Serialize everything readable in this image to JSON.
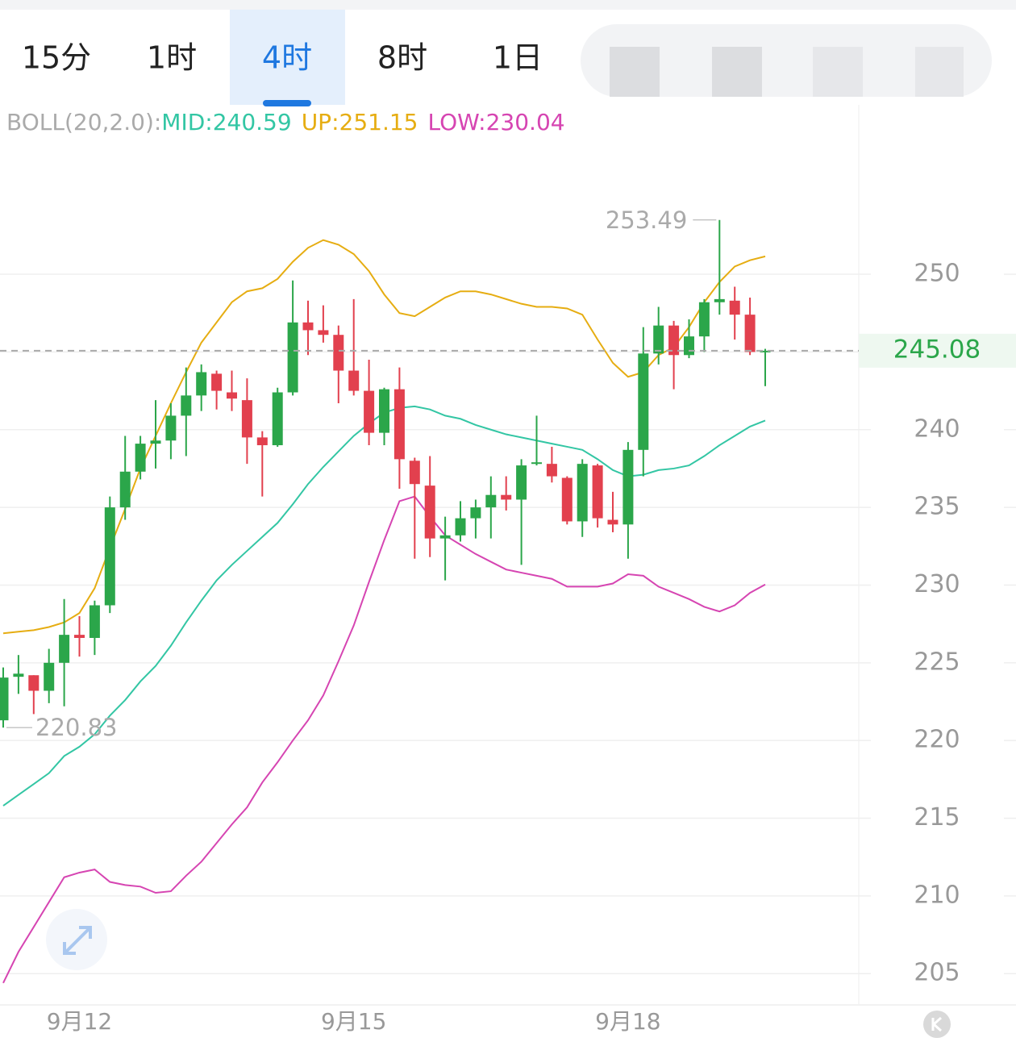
{
  "tabs": [
    "15分",
    "1时",
    "4时",
    "8时",
    "1日"
  ],
  "active_tab": 2,
  "chart_data": {
    "type": "candlestick",
    "indicator_label": "BOLL(20,2.0):",
    "categories": [
      null,
      null,
      null,
      null,
      null,
      "9月12",
      null,
      null,
      null,
      null,
      null,
      null,
      null,
      null,
      null,
      null,
      null,
      null,
      null,
      null,
      null,
      null,
      null,
      "9月15",
      null,
      null,
      null,
      null,
      null,
      null,
      null,
      null,
      null,
      null,
      null,
      null,
      null,
      null,
      null,
      null,
      null,
      "9月18",
      null,
      null,
      null,
      null,
      null,
      null,
      null,
      null,
      null
    ],
    "open": [
      221.3,
      224.1,
      224.2,
      223.2,
      225.0,
      226.8,
      226.6,
      228.7,
      235.0,
      237.3,
      239.1,
      239.3,
      240.9,
      242.2,
      243.6,
      242.4,
      241.9,
      239.5,
      239.0,
      242.4,
      246.9,
      246.4,
      246.1,
      243.8,
      242.5,
      239.8,
      242.6,
      238.0,
      236.4,
      233.0,
      233.2,
      234.3,
      235.0,
      235.8,
      235.5,
      237.8,
      237.8,
      236.9,
      234.1,
      237.7,
      234.2,
      233.9,
      238.7,
      244.9,
      246.7,
      244.8,
      246.0,
      248.2,
      248.3,
      247.4,
      245.0
    ],
    "high": [
      224.7,
      225.5,
      224.2,
      225.9,
      229.1,
      228.0,
      229.0,
      235.7,
      239.6,
      239.6,
      241.9,
      241.7,
      244.0,
      244.2,
      243.8,
      243.8,
      243.3,
      239.9,
      242.7,
      249.6,
      248.3,
      248.0,
      246.7,
      248.4,
      244.5,
      242.7,
      244.0,
      238.2,
      238.3,
      234.4,
      235.4,
      235.5,
      237.0,
      237.0,
      238.1,
      240.9,
      238.9,
      237.0,
      238.1,
      237.8,
      236.0,
      239.2,
      246.6,
      247.9,
      247.0,
      247.1,
      248.4,
      253.49,
      249.2,
      248.5,
      245.2
    ],
    "low": [
      220.83,
      223.0,
      221.7,
      222.4,
      222.2,
      225.4,
      225.5,
      228.2,
      234.2,
      236.8,
      237.5,
      238.1,
      238.3,
      241.2,
      241.3,
      241.2,
      237.8,
      235.7,
      238.9,
      242.2,
      244.8,
      245.6,
      241.7,
      242.2,
      239.0,
      239.0,
      236.2,
      231.7,
      231.8,
      230.3,
      232.8,
      233.0,
      233.0,
      234.8,
      231.3,
      237.7,
      236.6,
      233.9,
      233.1,
      233.7,
      233.4,
      231.7,
      237.0,
      244.2,
      242.6,
      244.6,
      245.0,
      247.4,
      245.8,
      244.8,
      242.8
    ],
    "close": [
      224.05,
      224.3,
      223.2,
      225.0,
      226.8,
      226.6,
      228.7,
      235.0,
      237.3,
      239.1,
      239.3,
      240.9,
      242.2,
      243.7,
      242.5,
      242.0,
      239.5,
      239.0,
      242.4,
      246.9,
      246.4,
      246.1,
      243.8,
      242.5,
      239.8,
      242.6,
      238.1,
      236.5,
      233.0,
      233.2,
      234.3,
      235.0,
      235.8,
      235.5,
      237.7,
      237.9,
      237.0,
      234.1,
      237.8,
      234.3,
      233.9,
      238.7,
      244.9,
      246.7,
      244.8,
      246.0,
      248.2,
      248.4,
      247.4,
      245.0,
      245.08
    ],
    "up_color": "#2ba64a",
    "down_color": "#e2404e",
    "series": [
      {
        "name": "MID:240.59",
        "color": "#33c6a4",
        "values": [
          215.8,
          216.5,
          217.2,
          217.9,
          219.0,
          219.6,
          220.4,
          221.6,
          222.6,
          223.8,
          224.8,
          226.1,
          227.6,
          229.0,
          230.3,
          231.3,
          232.2,
          233.1,
          234.0,
          235.2,
          236.5,
          237.6,
          238.6,
          239.6,
          240.4,
          241.1,
          241.4,
          241.5,
          241.3,
          240.9,
          240.7,
          240.3,
          240.0,
          239.7,
          239.5,
          239.3,
          239.1,
          238.9,
          238.7,
          238.1,
          237.4,
          237.0,
          237.1,
          237.4,
          237.5,
          237.7,
          238.3,
          239.0,
          239.6,
          240.2,
          240.59
        ]
      },
      {
        "name": "UP:251.15",
        "color": "#e6ad12",
        "values": [
          226.9,
          227.0,
          227.1,
          227.3,
          227.6,
          228.2,
          229.8,
          232.4,
          234.9,
          237.5,
          239.6,
          241.7,
          243.7,
          245.6,
          246.9,
          248.2,
          248.9,
          249.1,
          249.7,
          250.8,
          251.7,
          252.2,
          251.9,
          251.3,
          250.2,
          248.7,
          247.5,
          247.3,
          247.9,
          248.5,
          248.9,
          248.9,
          248.7,
          248.4,
          248.1,
          247.9,
          247.9,
          247.8,
          247.4,
          245.8,
          244.3,
          243.4,
          243.7,
          244.8,
          245.3,
          246.6,
          248.2,
          249.5,
          250.5,
          250.9,
          251.15
        ]
      },
      {
        "name": "LOW:230.04",
        "color": "#d645b2",
        "values": [
          204.4,
          206.4,
          208.0,
          209.6,
          211.2,
          211.5,
          211.7,
          210.9,
          210.7,
          210.6,
          210.2,
          210.3,
          211.3,
          212.2,
          213.4,
          214.6,
          215.7,
          217.3,
          218.6,
          220.0,
          221.3,
          222.9,
          225.1,
          227.4,
          230.2,
          232.9,
          235.4,
          235.7,
          234.4,
          233.2,
          232.6,
          232.0,
          231.5,
          231.0,
          230.8,
          230.6,
          230.4,
          229.9,
          229.9,
          229.9,
          230.1,
          230.7,
          230.6,
          229.9,
          229.5,
          229.1,
          228.6,
          228.3,
          228.7,
          229.5,
          230.04
        ]
      }
    ],
    "ylim": [
      203.04,
      260.9
    ],
    "yticks": [
      205,
      210,
      215,
      220,
      225,
      230,
      235,
      240,
      245,
      250
    ],
    "grid": true,
    "last_price": 245.08,
    "max_label": 253.49,
    "min_label": 220.83
  }
}
